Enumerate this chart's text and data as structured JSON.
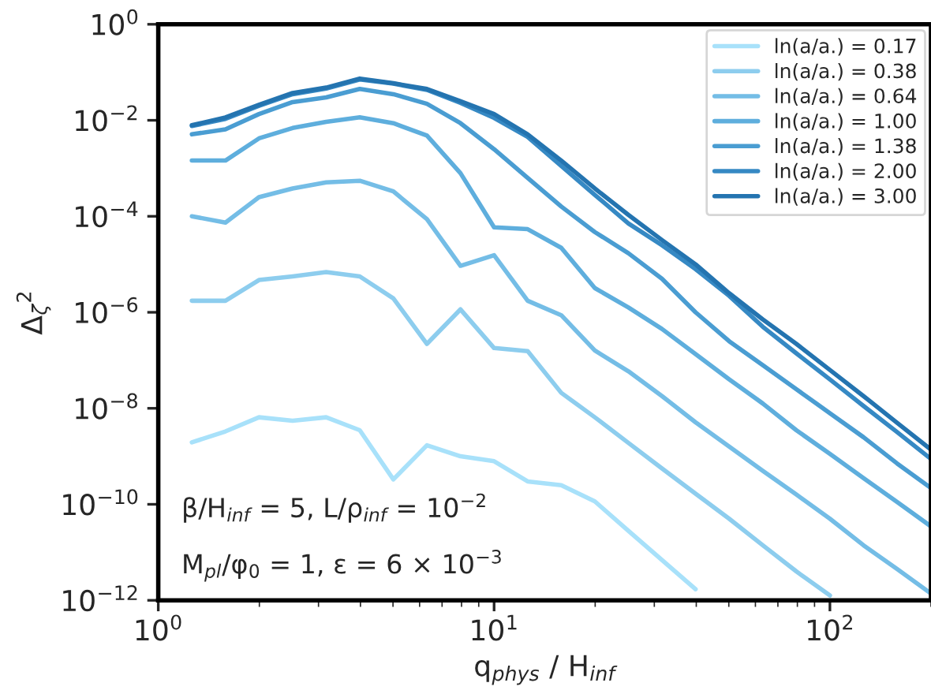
{
  "chart_data": {
    "type": "line",
    "xlabel": "q$_{phys}$ / H$_{inf}$",
    "ylabel": "Δ$_{ζ}$$^{2}$",
    "x": [
      1.259,
      1.585,
      1.995,
      2.512,
      3.162,
      3.981,
      5.012,
      6.31,
      7.943,
      10,
      12.59,
      15.85,
      19.95,
      25.12,
      31.62,
      39.81,
      50.12,
      63.1,
      79.43,
      100,
      125.9,
      158.5,
      199.5
    ],
    "series": [
      {
        "name": "ln(a/a.) = 0.17",
        "color": "#a8e1fa",
        "values": [
          1.95e-09,
          3.3e-09,
          6.5e-09,
          5.5e-09,
          6.5e-09,
          3.5e-09,
          3.3e-10,
          1.7e-09,
          1e-09,
          7.9e-10,
          3e-10,
          2.5e-10,
          1.15e-10,
          2.8e-11,
          6.9e-12,
          1.7e-12,
          null,
          null,
          null,
          null,
          null,
          null,
          null
        ]
      },
      {
        "name": "ln(a/a.) = 0.38",
        "color": "#8dcdee",
        "values": [
          1.74e-06,
          1.74e-06,
          4.7e-06,
          5.6e-06,
          6.9e-06,
          5.6e-06,
          1.95e-06,
          2.2e-07,
          1.15e-06,
          1.8e-07,
          1.55e-07,
          2.1e-08,
          6.5e-09,
          1.9e-09,
          5.6e-10,
          1.66e-10,
          5e-11,
          1.4e-11,
          4e-12,
          1.26e-12,
          null,
          null,
          null
        ]
      },
      {
        "name": "ln(a/a.) = 0.64",
        "color": "#74bde6",
        "values": [
          0.0001,
          7.4e-05,
          0.00025,
          0.00038,
          0.00051,
          0.00055,
          0.00033,
          8.7e-05,
          9.3e-06,
          1.55e-05,
          1.74e-06,
          8.7e-07,
          1.6e-07,
          5.9e-08,
          1.8e-08,
          5.1e-09,
          1.6e-09,
          5e-10,
          1.6e-10,
          5e-11,
          1.4e-11,
          4.5e-12,
          1.4e-12
        ]
      },
      {
        "name": "ln(a/a.) = 1.00",
        "color": "#5eaedd",
        "values": [
          0.00145,
          0.00145,
          0.0042,
          0.0069,
          0.0093,
          0.0115,
          0.0087,
          0.0048,
          0.00079,
          5.9e-05,
          5.4e-05,
          2.2e-05,
          3.2e-06,
          1.26e-06,
          4.5e-07,
          1.35e-07,
          4e-08,
          1.26e-08,
          3.5e-09,
          1.12e-09,
          3.5e-10,
          1.12e-10,
          3.5e-11
        ]
      },
      {
        "name": "ln(a/a.) = 1.38",
        "color": "#4a9dd2",
        "values": [
          0.0051,
          0.0065,
          0.0135,
          0.024,
          0.03,
          0.045,
          0.035,
          0.022,
          0.0087,
          0.0025,
          0.00063,
          0.00016,
          4.7e-05,
          1.7e-05,
          5e-06,
          1e-06,
          2.5e-07,
          7.9e-08,
          2.5e-08,
          7.9e-09,
          2.5e-09,
          7.1e-10,
          2.2e-10
        ]
      },
      {
        "name": "ln(a/a.) = 2.00",
        "color": "#3689c4",
        "values": [
          0.0076,
          0.0107,
          0.02,
          0.035,
          0.046,
          0.071,
          0.058,
          0.043,
          0.023,
          0.0112,
          0.0045,
          0.00112,
          0.00028,
          7.1e-05,
          2.5e-05,
          7.9e-06,
          2.2e-06,
          5e-07,
          1.4e-07,
          4e-08,
          1.12e-08,
          3.2e-09,
          8.9e-10
        ]
      },
      {
        "name": "ln(a/a.) = 3.00",
        "color": "#2474b0",
        "values": [
          0.0079,
          0.0115,
          0.021,
          0.037,
          0.048,
          0.074,
          0.059,
          0.045,
          0.025,
          0.0135,
          0.0051,
          0.00145,
          0.00038,
          0.000107,
          3.2e-05,
          1e-05,
          2.5e-06,
          7.1e-07,
          2.2e-07,
          6.3e-08,
          1.8e-08,
          5e-09,
          1.4e-09
        ]
      }
    ],
    "log": "xy",
    "xlim": [
      1,
      200
    ],
    "ylim": [
      1e-12,
      1
    ],
    "xticks": [
      {
        "value": 1,
        "label": "10$^{0}$"
      },
      {
        "value": 10,
        "label": "10$^{1}$"
      },
      {
        "value": 100,
        "label": "10$^{2}$"
      }
    ],
    "yticks": [
      {
        "value": 1e-12,
        "label": "10$^{−12}$"
      },
      {
        "value": 1e-10,
        "label": "10$^{−10}$"
      },
      {
        "value": 1e-08,
        "label": "10$^{−8}$"
      },
      {
        "value": 1e-06,
        "label": "10$^{−6}$"
      },
      {
        "value": 0.0001,
        "label": "10$^{−4}$"
      },
      {
        "value": 0.01,
        "label": "10$^{−2}$"
      },
      {
        "value": 1,
        "label": "10$^{0}$"
      }
    ],
    "annotations": [
      "β/H$_{inf}$ = 5, L/ρ$_{inf}$ = 10$^{−2}$",
      "M$_{pl}$/φ$_{0}$ = 1, ε = 6 × 10$^{−3}$"
    ],
    "legend": "top right",
    "grid": false,
    "line_style": "solid",
    "marker": "none"
  }
}
